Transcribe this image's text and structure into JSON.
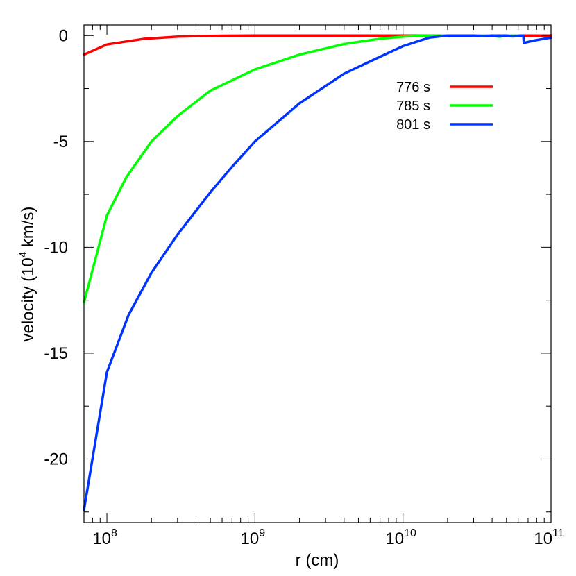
{
  "chart_data": {
    "type": "line",
    "xlabel": "r (cm)",
    "ylabel": "velocity (10",
    "ylabel_sup": "4",
    "ylabel_end": " km/s)",
    "xscale": "log",
    "xlim": [
      70000000,
      100000000000
    ],
    "ylim": [
      -23,
      0.5
    ],
    "x_ticks": [
      {
        "value": 100000000,
        "base": "10",
        "exp": "8"
      },
      {
        "value": 1000000000,
        "base": "10",
        "exp": "9"
      },
      {
        "value": 10000000000,
        "base": "10",
        "exp": "10"
      },
      {
        "value": 100000000000,
        "base": "10",
        "exp": "11"
      }
    ],
    "y_ticks": [
      {
        "value": 0,
        "label": "0"
      },
      {
        "value": -5,
        "label": "-5"
      },
      {
        "value": -10,
        "label": "-10"
      },
      {
        "value": -15,
        "label": "-15"
      },
      {
        "value": -20,
        "label": "-20"
      }
    ],
    "y_minor_step": 2.5,
    "legend_position": "top-right",
    "series": [
      {
        "name": "776 s",
        "color": "#ff0000",
        "x": [
          70000000,
          100000000,
          180000000,
          300000000,
          600000000,
          1000000000,
          10000000000,
          100000000000
        ],
        "y": [
          -0.9,
          -0.42,
          -0.15,
          -0.05,
          -0.01,
          0,
          0,
          0
        ]
      },
      {
        "name": "785 s",
        "color": "#00ff00",
        "x": [
          70000000,
          100000000,
          135000000,
          200000000,
          300000000,
          500000000,
          1000000000,
          2000000000,
          4000000000,
          7000000000,
          10000000000,
          13000000000,
          20000000000,
          40000000000,
          45000000000,
          50000000000,
          60000000000
        ],
        "y": [
          -12.6,
          -8.5,
          -6.7,
          -5.0,
          -3.8,
          -2.6,
          -1.6,
          -0.9,
          -0.4,
          -0.15,
          -0.05,
          -0.01,
          0,
          0,
          -0.06,
          0,
          0
        ]
      },
      {
        "name": "801 s",
        "color": "#0033ff",
        "x": [
          70000000,
          100000000,
          140000000,
          200000000,
          300000000,
          500000000,
          700000000,
          1000000000,
          2000000000,
          4000000000,
          7000000000,
          10000000000,
          15000000000,
          20000000000,
          30000000000,
          35000000000,
          40000000000,
          50000000000,
          55000000000,
          65000000000,
          65500000000,
          75000000000,
          90000000000,
          100000000000
        ],
        "y": [
          -22.4,
          -15.9,
          -13.2,
          -11.2,
          -9.4,
          -7.4,
          -6.2,
          -5.0,
          -3.2,
          -1.8,
          -1.0,
          -0.5,
          -0.1,
          0,
          0,
          -0.03,
          0,
          0,
          -0.04,
          0,
          -0.35,
          -0.25,
          -0.15,
          -0.1
        ]
      }
    ]
  }
}
